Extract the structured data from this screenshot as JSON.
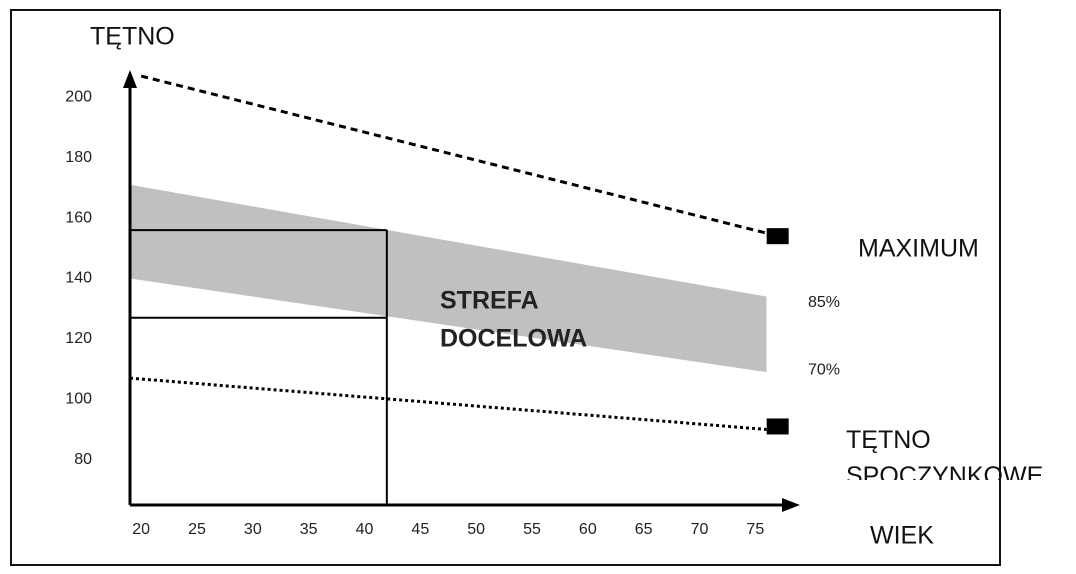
{
  "chart_data": {
    "type": "line",
    "y_label": "TĘTNO",
    "x_label": "WIEK",
    "xlim": [
      19,
      79
    ],
    "xticks": [
      20,
      25,
      30,
      35,
      40,
      45,
      50,
      55,
      60,
      65,
      70,
      75
    ],
    "ylim": [
      65,
      210
    ],
    "yticks": [
      80,
      100,
      120,
      140,
      160,
      180,
      200
    ],
    "series": [
      {
        "name": "MAXIMUM",
        "color": "#000000",
        "dash": "7,5",
        "x": [
          20,
          76
        ],
        "values": [
          207,
          155
        ],
        "marker": {
          "x": 77,
          "value": 154
        }
      },
      {
        "name": "TĘTNO SPOCZYNKOWE",
        "color": "#000000",
        "dash": "3,3",
        "x": [
          19,
          76
        ],
        "values": [
          107,
          90
        ],
        "marker": {
          "x": 77,
          "value": 91
        }
      }
    ],
    "band": {
      "upper_name": "85%",
      "lower_name": "70%",
      "color": "#c0c0c0",
      "x": [
        19,
        76
      ],
      "upper": [
        171,
        134
      ],
      "lower": [
        140,
        109
      ]
    },
    "zone": {
      "label": [
        "STREFA",
        "DOCELOWA"
      ],
      "x_end": 42,
      "top": 156,
      "bottom": 127
    }
  }
}
